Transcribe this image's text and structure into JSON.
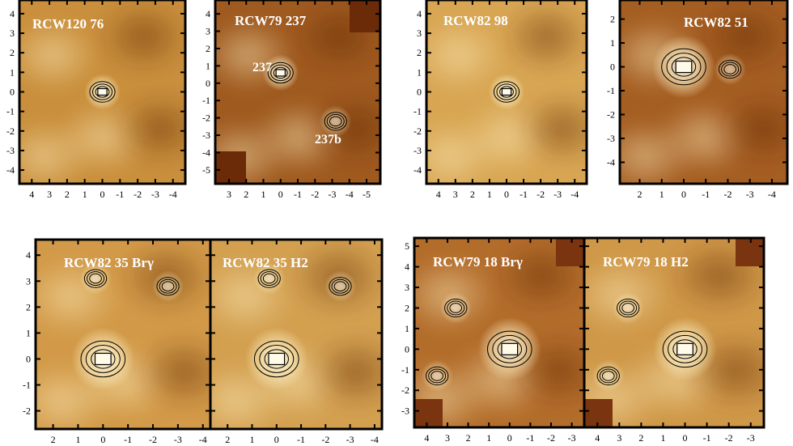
{
  "chart_data": [
    {
      "type": "heatmap",
      "title": "RCW120  76",
      "x_ticks": [
        "4",
        "3",
        "2",
        "1",
        "0",
        "-1",
        "-2",
        "-3",
        "-4"
      ],
      "y_ticks": [
        "4",
        "3",
        "2",
        "1",
        "0",
        "-1",
        "-2",
        "-3",
        "-4"
      ],
      "xlim": [
        4.7,
        -4.7
      ],
      "ylim": [
        -4.7,
        4.7
      ],
      "colormap": [
        "#6b2a08",
        "#b5741f",
        "#e2b56a",
        "#fff3c8"
      ],
      "background": "#c98f3c",
      "sources": [
        {
          "x": 0,
          "y": 0
        }
      ]
    },
    {
      "type": "heatmap",
      "title": "RCW79  237",
      "x_ticks": [
        "3",
        "2",
        "1",
        "0",
        "-1",
        "-2",
        "-3",
        "-4",
        "-5"
      ],
      "y_ticks": [
        "4",
        "3",
        "2",
        "1",
        "0",
        "-1",
        "-2",
        "-3",
        "-4",
        "-5"
      ],
      "xlim": [
        3.8,
        -5.8
      ],
      "ylim": [
        -5.8,
        4.8
      ],
      "colormap": [
        "#6b2a08",
        "#b5741f",
        "#e2b56a",
        "#fff3c8"
      ],
      "background": "#9f5a1f",
      "sources": [
        {
          "label": "237",
          "x": 0,
          "y": 0.6
        },
        {
          "label": "237b",
          "x": -3.2,
          "y": -2.2
        }
      ]
    },
    {
      "type": "heatmap",
      "title": "RCW82  98",
      "x_ticks": [
        "4",
        "3",
        "2",
        "1",
        "0",
        "-1",
        "-2",
        "-3",
        "-4"
      ],
      "y_ticks": [
        "4",
        "3",
        "2",
        "1",
        "0",
        "-1",
        "-2",
        "-3",
        "-4"
      ],
      "xlim": [
        4.7,
        -4.7
      ],
      "ylim": [
        -4.7,
        4.7
      ],
      "colormap": [
        "#6b2a08",
        "#b5741f",
        "#e2b56a",
        "#fff3c8"
      ],
      "background": "#d8a653",
      "sources": [
        {
          "x": 0,
          "y": 0
        }
      ]
    },
    {
      "type": "heatmap",
      "title": "RCW82 51",
      "x_ticks": [
        "2",
        "1",
        "0",
        "-1",
        "-2",
        "-3",
        "-4"
      ],
      "y_ticks": [
        "2",
        "1",
        "0",
        "-1",
        "-2",
        "-3",
        "-4"
      ],
      "xlim": [
        2.9,
        -4.7
      ],
      "ylim": [
        -4.9,
        2.8
      ],
      "colormap": [
        "#6b2a08",
        "#b5741f",
        "#e2b56a",
        "#fff3c8"
      ],
      "background": "#a55e22",
      "sources": [
        {
          "x": 0,
          "y": 0
        },
        {
          "x": -2.1,
          "y": -0.1
        }
      ]
    },
    {
      "type": "heatmap",
      "title": "RCW82 35   Brγ",
      "x_ticks": [
        "2",
        "1",
        "0",
        "-1",
        "-2",
        "-3",
        "-4"
      ],
      "y_ticks": [
        "4",
        "3",
        "2",
        "1",
        "0",
        "-1",
        "-2"
      ],
      "xlim": [
        2.7,
        -4.3
      ],
      "ylim": [
        -2.7,
        4.6
      ],
      "colormap": [
        "#6b2a08",
        "#b5741f",
        "#e2b56a",
        "#fff3c8"
      ],
      "background": "#d29a48",
      "sources": [
        {
          "x": 0,
          "y": 0
        },
        {
          "x": -2.6,
          "y": 2.8
        },
        {
          "x": 0.3,
          "y": 3.1
        }
      ]
    },
    {
      "type": "heatmap",
      "title": "RCW82 35  H2",
      "x_ticks": [
        "2",
        "1",
        "0",
        "-1",
        "-2",
        "-3",
        "-4"
      ],
      "xlim": [
        2.7,
        -4.3
      ],
      "ylim": [
        -2.7,
        4.6
      ],
      "colormap": [
        "#6b2a08",
        "#b5741f",
        "#e2b56a",
        "#fff3c8"
      ],
      "background": "#d3a050",
      "sources": [
        {
          "x": 0,
          "y": 0
        },
        {
          "x": -2.6,
          "y": 2.8
        },
        {
          "x": 0.3,
          "y": 3.1
        }
      ]
    },
    {
      "type": "heatmap",
      "title": "RCW79 18     Brγ",
      "x_ticks": [
        "4",
        "3",
        "2",
        "1",
        "0",
        "-1",
        "-2",
        "-3"
      ],
      "y_ticks": [
        "5",
        "4",
        "3",
        "2",
        "1",
        "0",
        "-1",
        "-2",
        "-3"
      ],
      "xlim": [
        4.6,
        -3.6
      ],
      "ylim": [
        -3.8,
        5.4
      ],
      "colormap": [
        "#6b2a08",
        "#b5741f",
        "#e2b56a",
        "#fff3c8"
      ],
      "background": "#b36d2b",
      "sources": [
        {
          "x": 0,
          "y": 0
        },
        {
          "x": 2.6,
          "y": 2
        },
        {
          "x": 3.5,
          "y": -1.3
        }
      ]
    },
    {
      "type": "heatmap",
      "title": "RCW79 18     H2",
      "x_ticks": [
        "4",
        "3",
        "2",
        "1",
        "0",
        "-1",
        "-2",
        "-3"
      ],
      "xlim": [
        4.6,
        -3.6
      ],
      "ylim": [
        -3.8,
        5.4
      ],
      "colormap": [
        "#6b2a08",
        "#b5741f",
        "#e2b56a",
        "#fff3c8"
      ],
      "background": "#cf9848",
      "sources": [
        {
          "x": 0,
          "y": 0
        },
        {
          "x": 2.6,
          "y": 2
        },
        {
          "x": 3.5,
          "y": -1.3
        }
      ]
    }
  ]
}
